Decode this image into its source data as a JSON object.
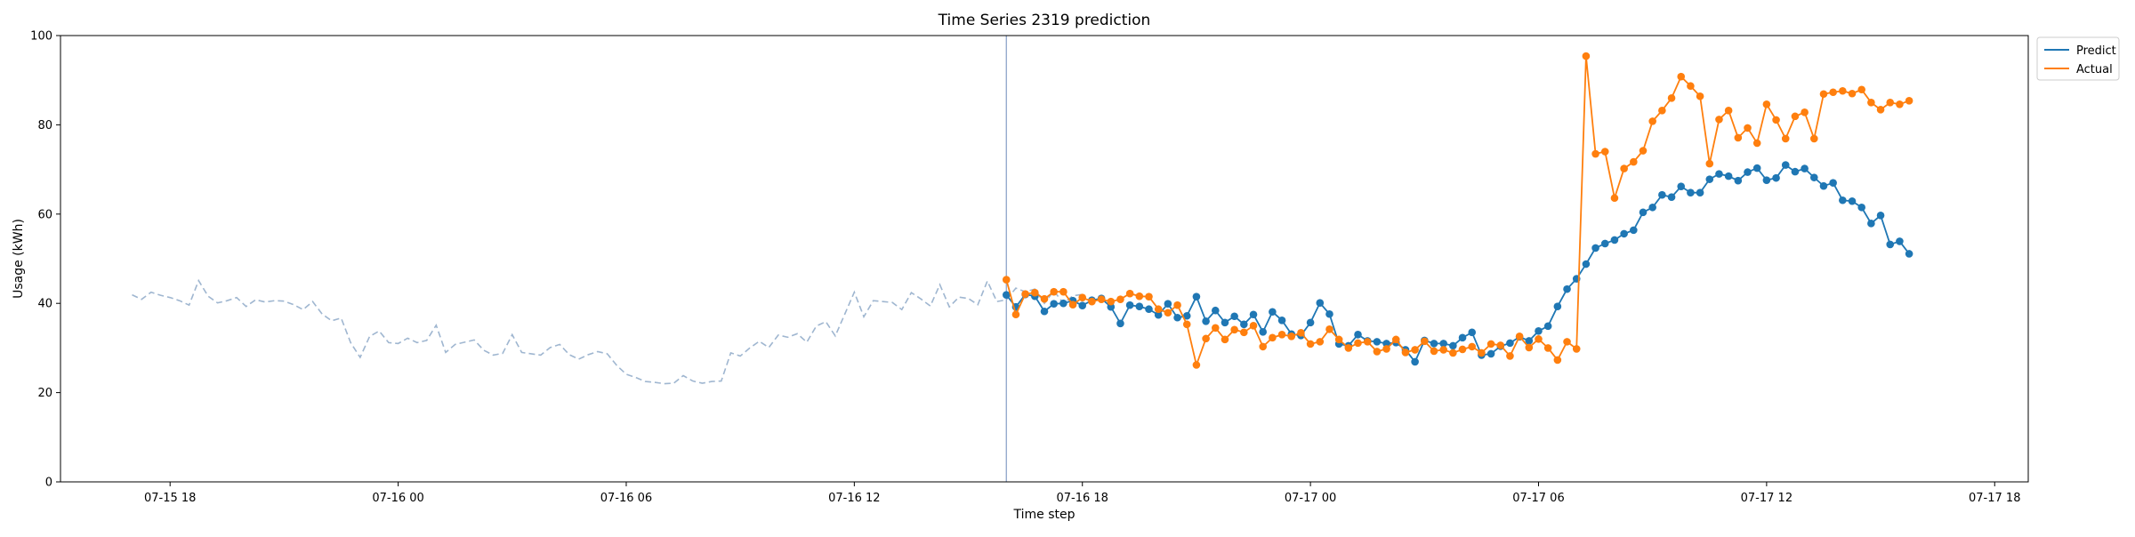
{
  "chart_data": {
    "type": "line",
    "title": "Time Series 2319 prediction",
    "xlabel": "Time step",
    "ylabel": "Usage (kWh)",
    "ylim": [
      0,
      100
    ],
    "xlim": [
      "07-15 15:07",
      "07-17 18:53"
    ],
    "yticks": [
      0,
      20,
      40,
      60,
      80,
      100
    ],
    "xticks": [
      "07-15 18:00",
      "07-16 00:00",
      "07-16 06:00",
      "07-16 12:00",
      "07-16 18:00",
      "07-17 00:00",
      "07-17 06:00",
      "07-17 12:00",
      "07-17 18:00"
    ],
    "xtick_labels": [
      "07-15 18",
      "07-16 00",
      "07-16 06",
      "07-16 12",
      "07-16 18",
      "07-17 00",
      "07-17 06",
      "07-17 12",
      "07-17 18"
    ],
    "grid": false,
    "legend_position": "top-right",
    "history": {
      "start": "07-15 17:00",
      "step_minutes": 15,
      "color": "#9fb6d0",
      "values": [
        41.9,
        40.9,
        42.5,
        41.8,
        41.3,
        40.6,
        39.6,
        45.1,
        41.6,
        40.1,
        40.6,
        41.3,
        39.3,
        40.8,
        40.3,
        40.6,
        40.5,
        39.7,
        38.6,
        40.4,
        37.6,
        36.1,
        36.7,
        31.2,
        27.9,
        32.6,
        33.8,
        31.2,
        31.0,
        32.2,
        31.2,
        31.7,
        35.1,
        29.0,
        30.8,
        31.3,
        31.8,
        29.5,
        28.4,
        28.8,
        33.0,
        29.0,
        28.7,
        28.4,
        30.1,
        30.8,
        28.5,
        27.5,
        28.5,
        29.2,
        28.7,
        26.1,
        24.1,
        23.4,
        22.5,
        22.3,
        22.0,
        22.1,
        23.8,
        22.6,
        22.1,
        22.5,
        22.6,
        28.9,
        28.2,
        30.0,
        31.5,
        30.1,
        32.9,
        32.4,
        33.2,
        31.3,
        34.9,
        35.9,
        32.7,
        37.6,
        42.5,
        37.0,
        40.6,
        40.4,
        40.2,
        38.6,
        42.4,
        41.0,
        39.4,
        44.2,
        39.2,
        41.4,
        41.1,
        39.7,
        45.0,
        40.4,
        40.8,
        43.4,
        42.6,
        43.2,
        40.0,
        42.8,
        40.0,
        41.7,
        42.0
      ]
    },
    "forecast_start": "07-16 16:00",
    "series": [
      {
        "name": "Predict",
        "color": "#1f77b4",
        "start": "07-16 16:00",
        "step_minutes": 15,
        "values": [
          41.9,
          39.2,
          42.0,
          41.6,
          38.2,
          39.9,
          40.0,
          40.6,
          39.5,
          40.7,
          41.1,
          39.2,
          35.5,
          39.6,
          39.3,
          38.7,
          37.4,
          39.9,
          36.8,
          37.2,
          41.5,
          36.0,
          38.4,
          35.7,
          37.1,
          35.3,
          37.5,
          33.6,
          38.1,
          36.2,
          33.1,
          32.8,
          35.7,
          40.1,
          37.6,
          30.9,
          30.5,
          33.0,
          31.6,
          31.4,
          31.0,
          31.2,
          29.6,
          26.9,
          31.7,
          31.0,
          31.0,
          30.5,
          32.3,
          33.5,
          28.4,
          28.7,
          30.4,
          31.1,
          32.5,
          31.6,
          33.8,
          34.9,
          39.3,
          43.2,
          45.5,
          48.8,
          52.4,
          53.4,
          54.2,
          55.6,
          56.4,
          60.4,
          61.5,
          64.3,
          63.8,
          66.2,
          64.8,
          64.8,
          67.8,
          69.0,
          68.5,
          67.5,
          69.4,
          70.3,
          67.6,
          68.1,
          71.0,
          69.5,
          70.2,
          68.2,
          66.3,
          67.0,
          63.1,
          62.9,
          61.5,
          57.9,
          59.7,
          53.2,
          53.9,
          51.1
        ]
      },
      {
        "name": "Actual",
        "color": "#ff7f0e",
        "start": "07-16 16:00",
        "step_minutes": 15,
        "values": [
          45.3,
          37.5,
          42.1,
          42.4,
          41.0,
          42.6,
          42.6,
          39.7,
          41.3,
          40.4,
          40.9,
          40.4,
          40.9,
          42.2,
          41.6,
          41.5,
          38.7,
          37.9,
          39.6,
          35.3,
          26.2,
          32.1,
          34.5,
          31.9,
          34.1,
          33.5,
          35.0,
          30.3,
          32.3,
          33.0,
          32.6,
          33.4,
          30.9,
          31.4,
          34.2,
          31.9,
          30.0,
          31.1,
          31.4,
          29.2,
          29.8,
          31.9,
          29.0,
          29.6,
          31.5,
          29.3,
          29.6,
          28.9,
          29.7,
          30.3,
          28.9,
          30.9,
          30.6,
          28.2,
          32.6,
          30.1,
          32.0,
          30.0,
          27.3,
          31.4,
          29.8,
          95.4,
          73.5,
          74.0,
          63.6,
          70.2,
          71.7,
          74.2,
          80.8,
          83.2,
          86.0,
          90.8,
          88.7,
          86.4,
          71.3,
          81.2,
          83.2,
          77.1,
          79.3,
          75.9,
          84.6,
          81.1,
          76.9,
          81.9,
          82.8,
          76.9,
          86.9,
          87.3,
          87.6,
          87.0,
          87.9,
          85.0,
          83.4,
          85.0,
          84.6,
          85.4
        ]
      }
    ]
  }
}
